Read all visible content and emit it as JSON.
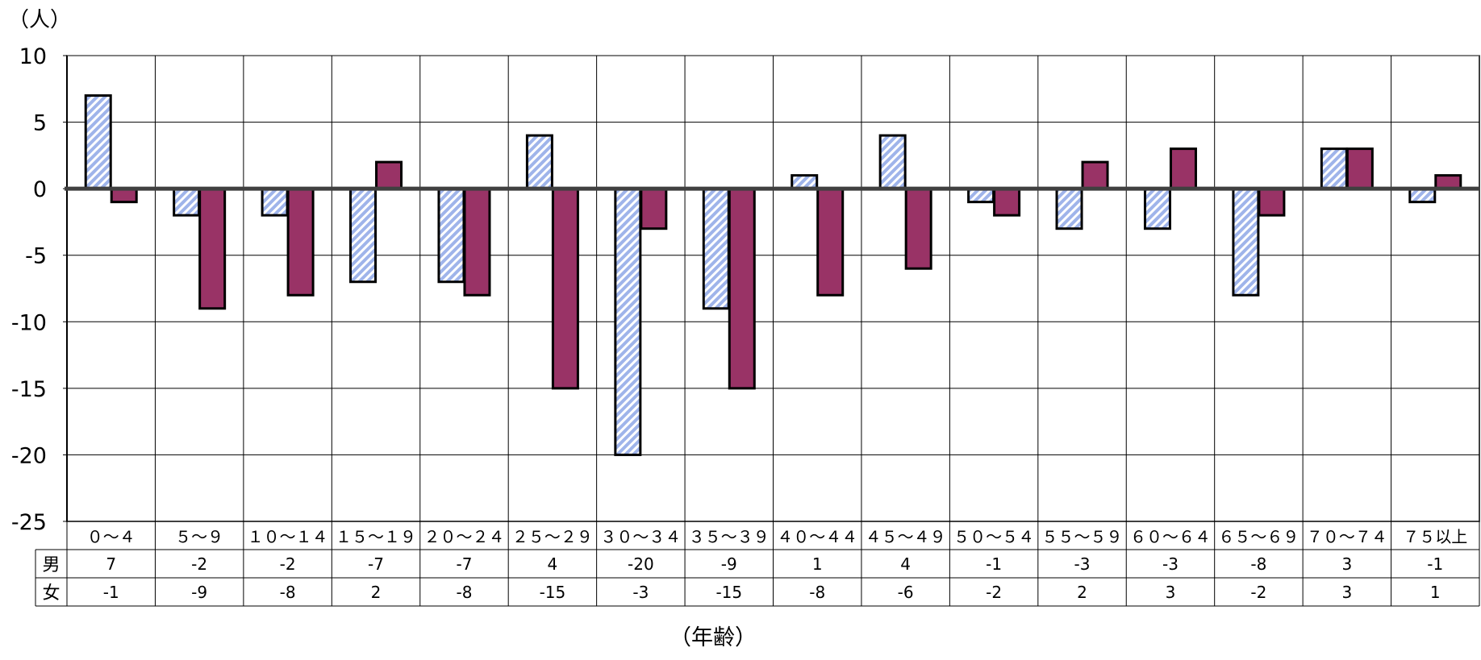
{
  "chart_data": {
    "type": "bar",
    "y_unit_label": "（人）",
    "x_axis_label": "（年齢）",
    "ylim": [
      -25,
      10
    ],
    "y_ticks": [
      10,
      5,
      0,
      -5,
      -10,
      -15,
      -20,
      -25
    ],
    "grid": true,
    "legend": "data-table-below",
    "categories": [
      "０～４",
      "５～９",
      "１０～１４",
      "１５～１９",
      "２０～２４",
      "２５～２９",
      "３０～３４",
      "３５～３９",
      "４０～４４",
      "４５～４９",
      "５０～５４",
      "５５～５９",
      "６０～６４",
      "６５～６９",
      "７０～７４",
      "７５以上"
    ],
    "series": [
      {
        "name": "男",
        "values": [
          7,
          -2,
          -2,
          -7,
          -7,
          4,
          -20,
          -9,
          1,
          4,
          -1,
          -3,
          -3,
          -8,
          3,
          -1
        ],
        "color": "#9fb4ea",
        "pattern": "diagonal-hatch"
      },
      {
        "name": "女",
        "values": [
          -1,
          -9,
          -8,
          2,
          -8,
          -15,
          -3,
          -15,
          -8,
          -6,
          -2,
          2,
          3,
          -2,
          3,
          1
        ],
        "color": "#993366",
        "pattern": "solid"
      }
    ]
  }
}
